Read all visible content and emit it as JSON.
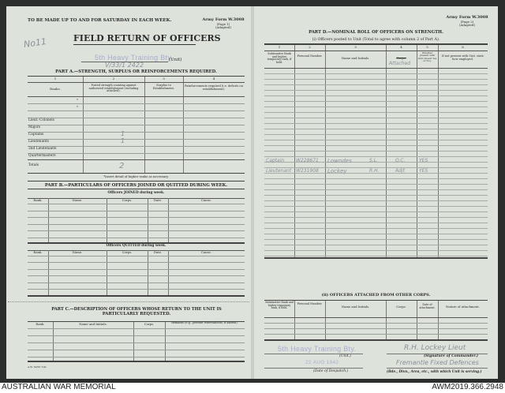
{
  "page1": {
    "instruction": "TO BE MADE UP TO AND FOR SATURDAY IN EACH WEEK.",
    "form_number": "Army Form W.3008",
    "form_page": "(Page 1)",
    "form_adapted": "(Adapted)",
    "handwritten_ref": "No11",
    "title": "FIELD RETURN OF OFFICERS",
    "unit_stamp": "5th Heavy Training Bty.",
    "unit_label": "(Unit)",
    "handwritten_file": "V/33/1   2422",
    "part_a": {
      "title": "PART A.—STRENGTH, SURPLUS OR REINFORCEMENTS REQUIRED.",
      "col_numbers": [
        "1",
        "2",
        "3",
        "4"
      ],
      "headers": [
        "Ranks.",
        "Posted strength counting against authorized establishment (excluding attached).",
        "Surplus to Establishment.",
        "Reinforcements required (i.e. deficits on establishment)."
      ],
      "ranks": [
        "*",
        "*",
        "Lieut.-Colonels",
        "Majors",
        "Captains",
        "Lieutenants",
        "2nd Lieutenants",
        "Quartermasters"
      ],
      "posted": [
        "",
        "",
        "",
        "",
        "1",
        "1",
        "",
        ""
      ],
      "totals_label": "Totals",
      "totals_posted": "2",
      "footnote": "*Insert detail of higher ranks as necessary."
    },
    "part_b": {
      "title": "PART B.—PARTICULARS OF OFFICERS JOINED OR QUITTED DURING WEEK.",
      "joined_caption": "Officers JOINED during week.",
      "quitted_caption": "Officers QUITTED during week.",
      "headers": [
        "Rank.",
        "Name.",
        "Corps.",
        "Date.",
        "Cause."
      ]
    },
    "part_c": {
      "title": "PART C.—DESCRIPTION OF OFFICERS WHOSE RETURN TO THE UNIT IS PARTICULARLY REQUESTED.",
      "headers": [
        "Rank.",
        "Name and Initials.",
        "Corps.",
        "Remarks (e.g., present whereabouts, if known)."
      ]
    },
    "print_code": "A.W. 30/50 7/41"
  },
  "page2": {
    "form_number": "Army Form W.3008",
    "form_page": "(Page 2)",
    "form_adapted": "(Adapted)",
    "part_d": {
      "title": "PART D.—NOMINAL ROLL OF OFFICERS ON STRENGTH.",
      "subtitle": "(i) Officers posted to Unit (Total to agree with column 2 of Part A).",
      "col_numbers": [
        "1",
        "2",
        "3",
        "4",
        "5",
        "6"
      ],
      "headers": [
        "Substantive Rank and higher temporary rank, if held.",
        "Personal Number.",
        "Name and Initials.",
        "Corps.",
        "Whether present with Unit (insert Yes or No).",
        "If not present with Unit, state how employed."
      ],
      "corps_handwritten": "Attached",
      "rows": [
        {
          "rank": "Captain",
          "number": "W228671",
          "name": "Lowndes",
          "initials": "S.L.",
          "corps": "O.C.",
          "present": "YES"
        },
        {
          "rank": "Lieutenant",
          "number": "W231908",
          "name": "Lockey",
          "initials": "R.H.",
          "corps": "Adjt",
          "present": "YES"
        }
      ]
    },
    "attached": {
      "title": "(ii) OFFICERS ATTACHED FROM OTHER CORPS.",
      "headers": [
        "Substantive Rank and higher temporary rank, if held.",
        "Personal Number.",
        "Name and Initials.",
        "Corps.",
        "Date of attachment.",
        "Nature of attachment."
      ]
    },
    "unit_stamp": "5th Heavy Training Bty.",
    "unit_label": "(Unit.)",
    "date_stamp": "22 AUG 1942",
    "date_label": "(Date of Despatch.)",
    "signature": "R.H. Lockey Lieut",
    "signature_label": "(Signature of Commander.)",
    "formation_handwritten": "Fremantle Fixed Defences",
    "formation_label": "(Bde., Divn., Area, etc., with which Unit is serving.)"
  },
  "footer": {
    "institution": "AUSTRALIAN WAR MEMORIAL",
    "accession": "AWM2019.366.2948"
  }
}
